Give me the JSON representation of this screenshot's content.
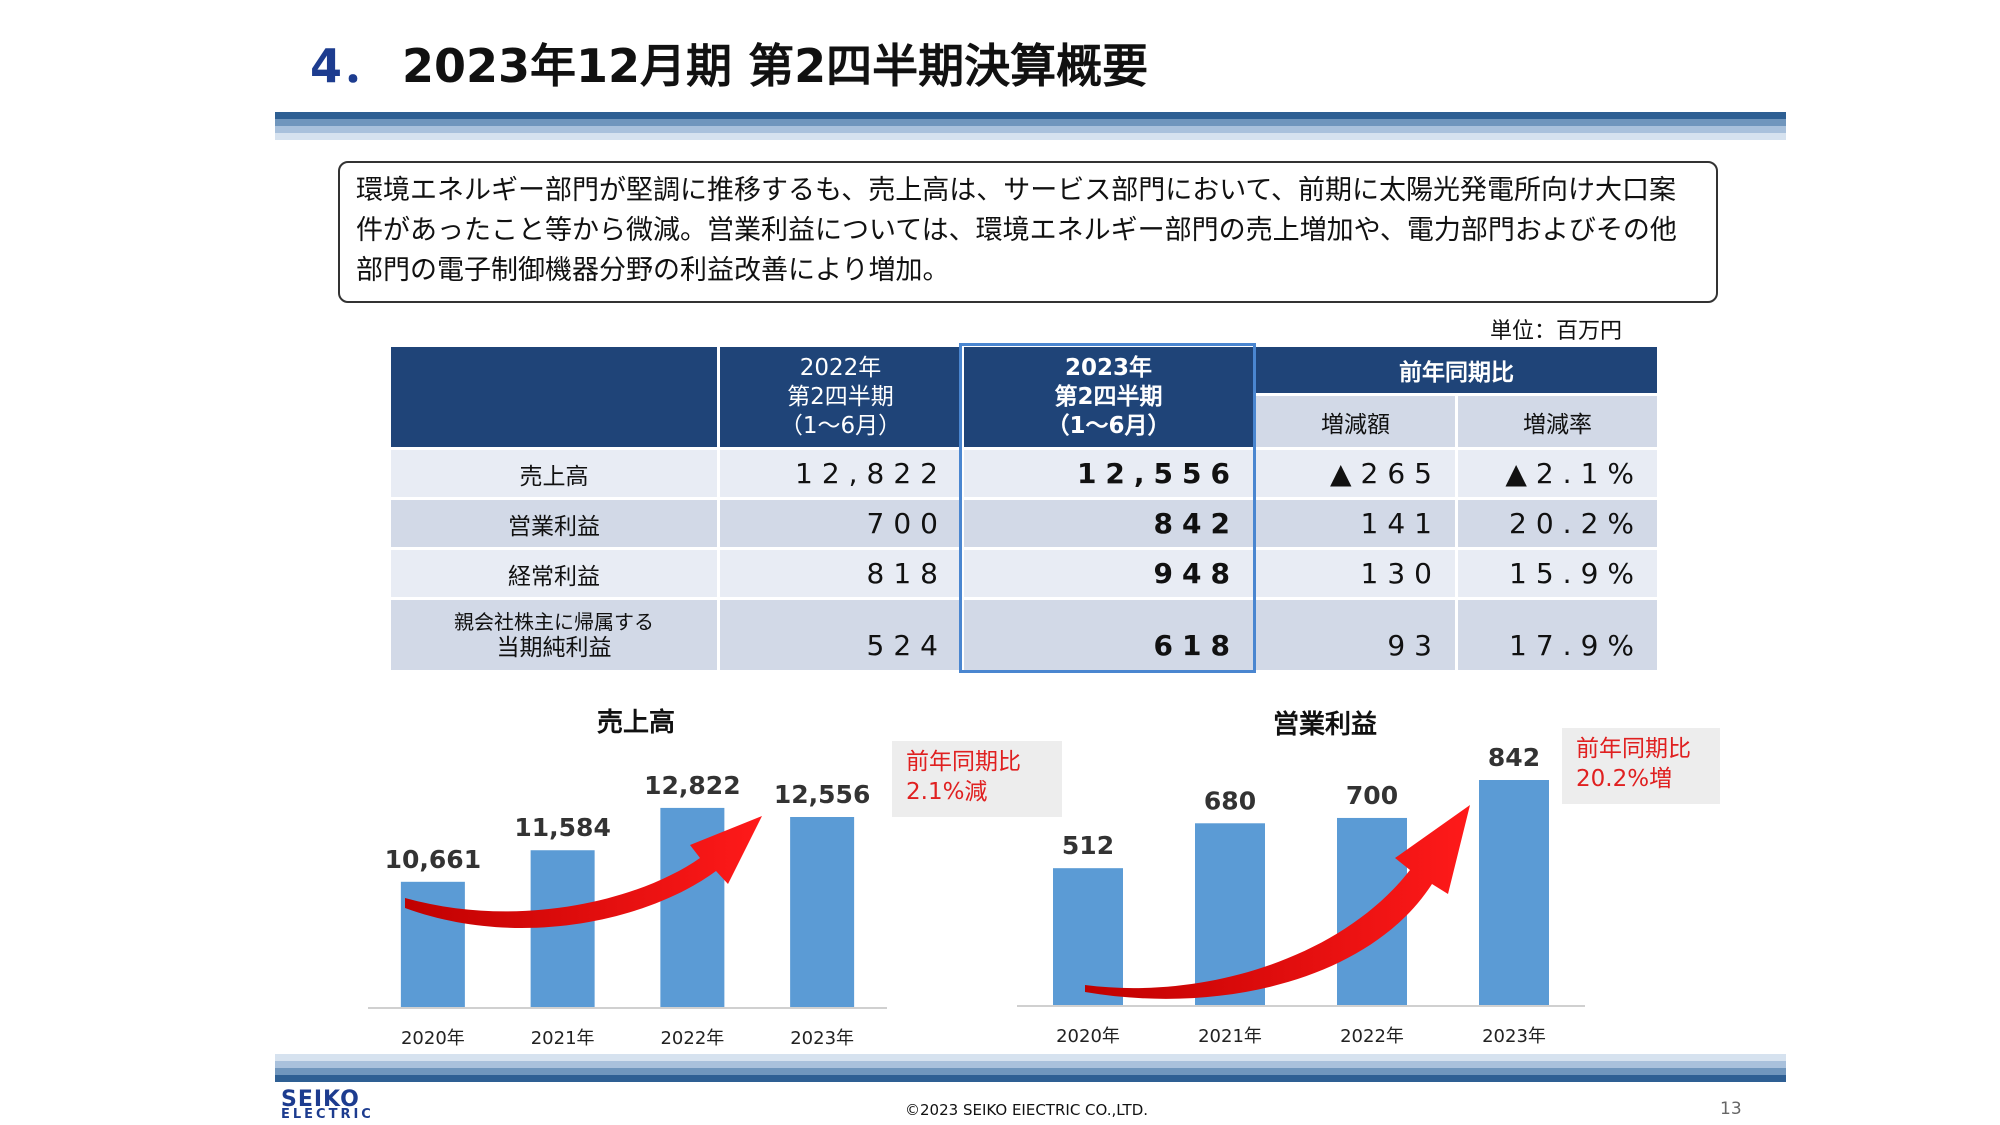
{
  "header": {
    "number": "4．",
    "title": "2023年12月期 第2四半期決算概要"
  },
  "summary_text": "環境エネルギー部門が堅調に推移するも、売上高は、サービス部門において、前期に太陽光発電所向け大口案件があったこと等から微減。営業利益については、環境エネルギー部門の売上増加や、電力部門およびその他部門の電子制御機器分野の利益改善により増加。",
  "unit": "単位：百万円",
  "table": {
    "col_prev": [
      "2022年",
      "第2四半期",
      "（1～6月）"
    ],
    "col_curr": [
      "2023年",
      "第2四半期",
      "（1～6月）"
    ],
    "col_yoy": "前年同期比",
    "col_change": "増減額",
    "col_rate": "増減率",
    "rows": [
      {
        "label": [
          "売上高"
        ],
        "prev": "12,822",
        "curr": "12,556",
        "change": "▲265",
        "rate": "▲2.1%"
      },
      {
        "label": [
          "営業利益"
        ],
        "prev": "700",
        "curr": "842",
        "change": "141",
        "rate": "20.2%"
      },
      {
        "label": [
          "経常利益"
        ],
        "prev": "818",
        "curr": "948",
        "change": "130",
        "rate": "15.9%"
      },
      {
        "label": [
          "親会社株主に帰属する",
          "当期純利益"
        ],
        "prev": "524",
        "curr": "618",
        "change": "93",
        "rate": "17.9%"
      }
    ]
  },
  "chart_data": [
    {
      "type": "bar",
      "title": "売上高",
      "categories": [
        "2020年",
        "2021年",
        "2022年",
        "2023年"
      ],
      "values": [
        10661,
        11584,
        12822,
        12556
      ],
      "labels": [
        "10,661",
        "11,584",
        "12,822",
        "12,556"
      ],
      "ylim": [
        7000,
        13500
      ],
      "annotation": [
        "前年同期比",
        "2.1%減"
      ],
      "bar_color": "#5b9bd5"
    },
    {
      "type": "bar",
      "title": "営業利益",
      "categories": [
        "2020年",
        "2021年",
        "2022年",
        "2023年"
      ],
      "values": [
        512,
        680,
        700,
        842
      ],
      "labels": [
        "512",
        "680",
        "700",
        "842"
      ],
      "ylim": [
        0,
        1070
      ],
      "annotation": [
        "前年同期比",
        "20.2%増"
      ],
      "bar_color": "#5b9bd5"
    }
  ],
  "footer": {
    "copyright": "©2023  SEIKO EIECTRIC CO.,LTD.",
    "page": "13",
    "logo": [
      "SEIKO",
      "ELECTRIC"
    ]
  }
}
